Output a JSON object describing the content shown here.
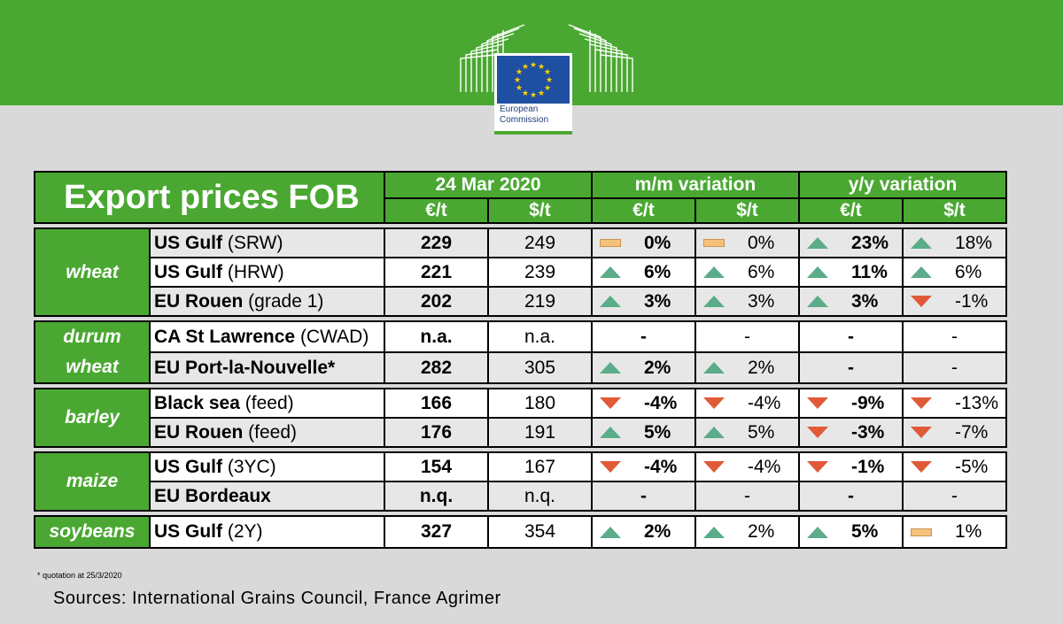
{
  "logo": {
    "line1": "European",
    "line2": "Commission"
  },
  "table": {
    "title": "Export prices FOB",
    "date": "24 Mar 2020",
    "mm_label": "m/m variation",
    "yy_label": "y/y variation",
    "eur_label": "€/t",
    "usd_label": "$/t"
  },
  "rows": [
    {
      "loc_b": "US Gulf",
      "loc_n": " (SRW)",
      "eur": "229",
      "usd": "249",
      "mm_eur": {
        "dir": "flat",
        "v": "0%"
      },
      "mm_usd": {
        "dir": "flat",
        "v": "0%"
      },
      "yy_eur": {
        "dir": "up",
        "v": "23%"
      },
      "yy_usd": {
        "dir": "up",
        "v": "18%"
      }
    },
    {
      "loc_b": "US Gulf",
      "loc_n": " (HRW)",
      "eur": "221",
      "usd": "239",
      "mm_eur": {
        "dir": "up",
        "v": "6%"
      },
      "mm_usd": {
        "dir": "up",
        "v": "6%"
      },
      "yy_eur": {
        "dir": "up",
        "v": "11%"
      },
      "yy_usd": {
        "dir": "up",
        "v": "6%"
      }
    },
    {
      "loc_b": "EU Rouen",
      "loc_n": " (grade 1)",
      "eur": "202",
      "usd": "219",
      "mm_eur": {
        "dir": "up",
        "v": "3%"
      },
      "mm_usd": {
        "dir": "up",
        "v": "3%"
      },
      "yy_eur": {
        "dir": "up",
        "v": "3%"
      },
      "yy_usd": {
        "dir": "down",
        "v": "-1%"
      }
    },
    {
      "loc_b": "CA St Lawrence",
      "loc_n": " (CWAD)",
      "eur": "n.a.",
      "usd": "n.a.",
      "mm_eur": {
        "dir": "none",
        "v": "-"
      },
      "mm_usd": {
        "dir": "none",
        "v": "-"
      },
      "yy_eur": {
        "dir": "none",
        "v": "-"
      },
      "yy_usd": {
        "dir": "none",
        "v": "-"
      }
    },
    {
      "loc_b": "EU Port-la-Nouvelle*",
      "loc_n": "",
      "eur": "282",
      "usd": "305",
      "mm_eur": {
        "dir": "up",
        "v": "2%"
      },
      "mm_usd": {
        "dir": "up",
        "v": "2%"
      },
      "yy_eur": {
        "dir": "none",
        "v": "-"
      },
      "yy_usd": {
        "dir": "none",
        "v": "-"
      }
    },
    {
      "loc_b": "Black sea",
      "loc_n": " (feed)",
      "eur": "166",
      "usd": "180",
      "mm_eur": {
        "dir": "down",
        "v": "-4%"
      },
      "mm_usd": {
        "dir": "down",
        "v": "-4%"
      },
      "yy_eur": {
        "dir": "down",
        "v": "-9%"
      },
      "yy_usd": {
        "dir": "down",
        "v": "-13%"
      }
    },
    {
      "loc_b": "EU Rouen",
      "loc_n": " (feed)",
      "eur": "176",
      "usd": "191",
      "mm_eur": {
        "dir": "up",
        "v": "5%"
      },
      "mm_usd": {
        "dir": "up",
        "v": "5%"
      },
      "yy_eur": {
        "dir": "down",
        "v": "-3%"
      },
      "yy_usd": {
        "dir": "down",
        "v": "-7%"
      }
    },
    {
      "loc_b": "US Gulf",
      "loc_n": " (3YC)",
      "eur": "154",
      "usd": "167",
      "mm_eur": {
        "dir": "down",
        "v": "-4%"
      },
      "mm_usd": {
        "dir": "down",
        "v": "-4%"
      },
      "yy_eur": {
        "dir": "down",
        "v": "-1%"
      },
      "yy_usd": {
        "dir": "down",
        "v": "-5%"
      }
    },
    {
      "loc_b": "EU Bordeaux",
      "loc_n": "",
      "eur": "n.q.",
      "usd": "n.q.",
      "mm_eur": {
        "dir": "none",
        "v": "-"
      },
      "mm_usd": {
        "dir": "none",
        "v": "-"
      },
      "yy_eur": {
        "dir": "none",
        "v": "-"
      },
      "yy_usd": {
        "dir": "none",
        "v": "-"
      }
    },
    {
      "loc_b": "US Gulf",
      "loc_n": " (2Y)",
      "eur": "327",
      "usd": "354",
      "mm_eur": {
        "dir": "up",
        "v": "2%"
      },
      "mm_usd": {
        "dir": "up",
        "v": "2%"
      },
      "yy_eur": {
        "dir": "up",
        "v": "5%"
      },
      "yy_usd": {
        "dir": "flat",
        "v": "1%"
      }
    }
  ],
  "categories": {
    "wheat": "wheat",
    "durum": "durum wheat",
    "barley": "barley",
    "maize": "maize",
    "soybeans": "soybeans"
  },
  "footnote": "* quotation at 25/3/2020",
  "sources": "Sources: International Grains Council, France Agrimer",
  "colors": {
    "green": "#4aa832",
    "up": "#5bac88",
    "down": "#e05a38",
    "flat": "#f4c27a",
    "background": "#d9d9d9"
  }
}
